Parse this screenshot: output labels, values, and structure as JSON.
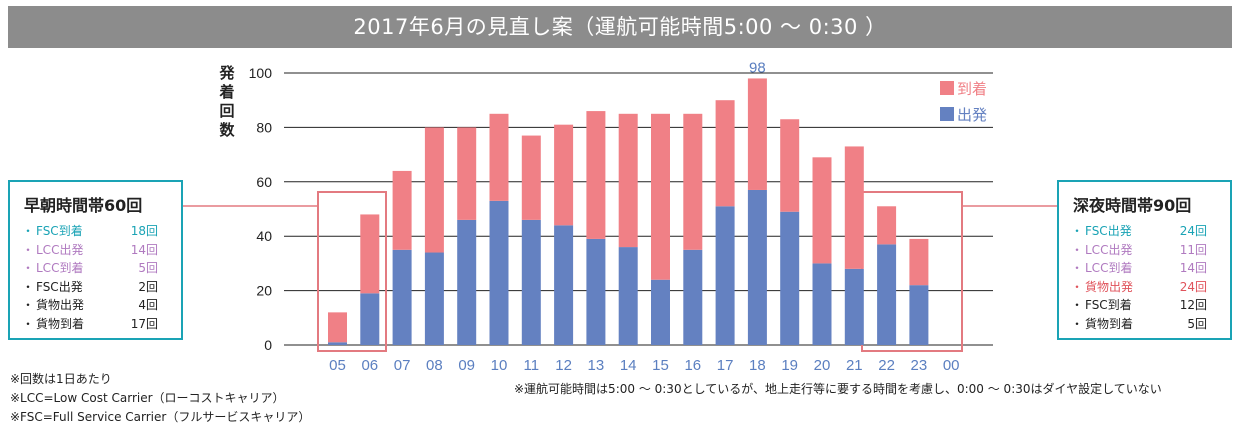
{
  "title": "2017年6月の見直し案（運航可能時間5:00 〜 0:30 ）",
  "chart_data": {
    "type": "bar",
    "stacked": true,
    "categories": [
      "05",
      "06",
      "07",
      "08",
      "09",
      "10",
      "11",
      "12",
      "13",
      "14",
      "15",
      "16",
      "17",
      "18",
      "19",
      "20",
      "21",
      "22",
      "23",
      "00"
    ],
    "series": [
      {
        "name": "出発",
        "color": "#6481c1",
        "values": [
          1,
          19,
          35,
          34,
          46,
          53,
          46,
          44,
          39,
          36,
          24,
          35,
          51,
          57,
          49,
          30,
          28,
          37,
          22,
          0
        ]
      },
      {
        "name": "到着",
        "color": "#f08086",
        "values": [
          11,
          29,
          29,
          46,
          34,
          32,
          31,
          37,
          47,
          49,
          61,
          50,
          39,
          41,
          34,
          39,
          45,
          14,
          17,
          0
        ]
      }
    ],
    "ylabel": "発着回数",
    "ylim": [
      0,
      100
    ],
    "yticks": [
      0,
      20,
      40,
      60,
      80,
      100
    ],
    "grid": true,
    "legend": "top-right",
    "annotations": [
      {
        "category": "18",
        "text": "98"
      }
    ]
  },
  "left_box": {
    "title": "早朝時間帯60回",
    "rows": [
      {
        "dot": "・",
        "label": "FSC到着",
        "value": "18回",
        "color": "#1aa3b5"
      },
      {
        "dot": "・",
        "label": "LCC出発",
        "value": "14回",
        "color": "#b07ac0"
      },
      {
        "dot": "・",
        "label": "LCC到着",
        "value": "5回",
        "color": "#b07ac0"
      },
      {
        "dot": "・",
        "label": "FSC出発",
        "value": "2回",
        "color": "#222222"
      },
      {
        "dot": "・",
        "label": "貨物出発",
        "value": "4回",
        "color": "#222222"
      },
      {
        "dot": "・",
        "label": "貨物到着",
        "value": "17回",
        "color": "#222222"
      }
    ]
  },
  "right_box": {
    "title": "深夜時間帯90回",
    "rows": [
      {
        "dot": "・",
        "label": "FSC出発",
        "value": "24回",
        "color": "#1aa3b5"
      },
      {
        "dot": "・",
        "label": "LCC出発",
        "value": "11回",
        "color": "#b07ac0"
      },
      {
        "dot": "・",
        "label": "LCC到着",
        "value": "14回",
        "color": "#b07ac0"
      },
      {
        "dot": "・",
        "label": "貨物出発",
        "value": "24回",
        "color": "#e0535b"
      },
      {
        "dot": "・",
        "label": "FSC到着",
        "value": "12回",
        "color": "#222222"
      },
      {
        "dot": "・",
        "label": "貨物到着",
        "value": "5回",
        "color": "#222222"
      }
    ]
  },
  "notes": [
    "※回数は1日あたり",
    "※LCC=Low Cost Carrier（ローコストキャリア）",
    "※FSC=Full Service Carrier（フルサービスキャリア）"
  ],
  "note_right": "※運航可能時間は5:00 〜 0:30としているが、地上走行等に要する時間を考慮し、0:00 〜 0:30はダイヤ設定していない"
}
